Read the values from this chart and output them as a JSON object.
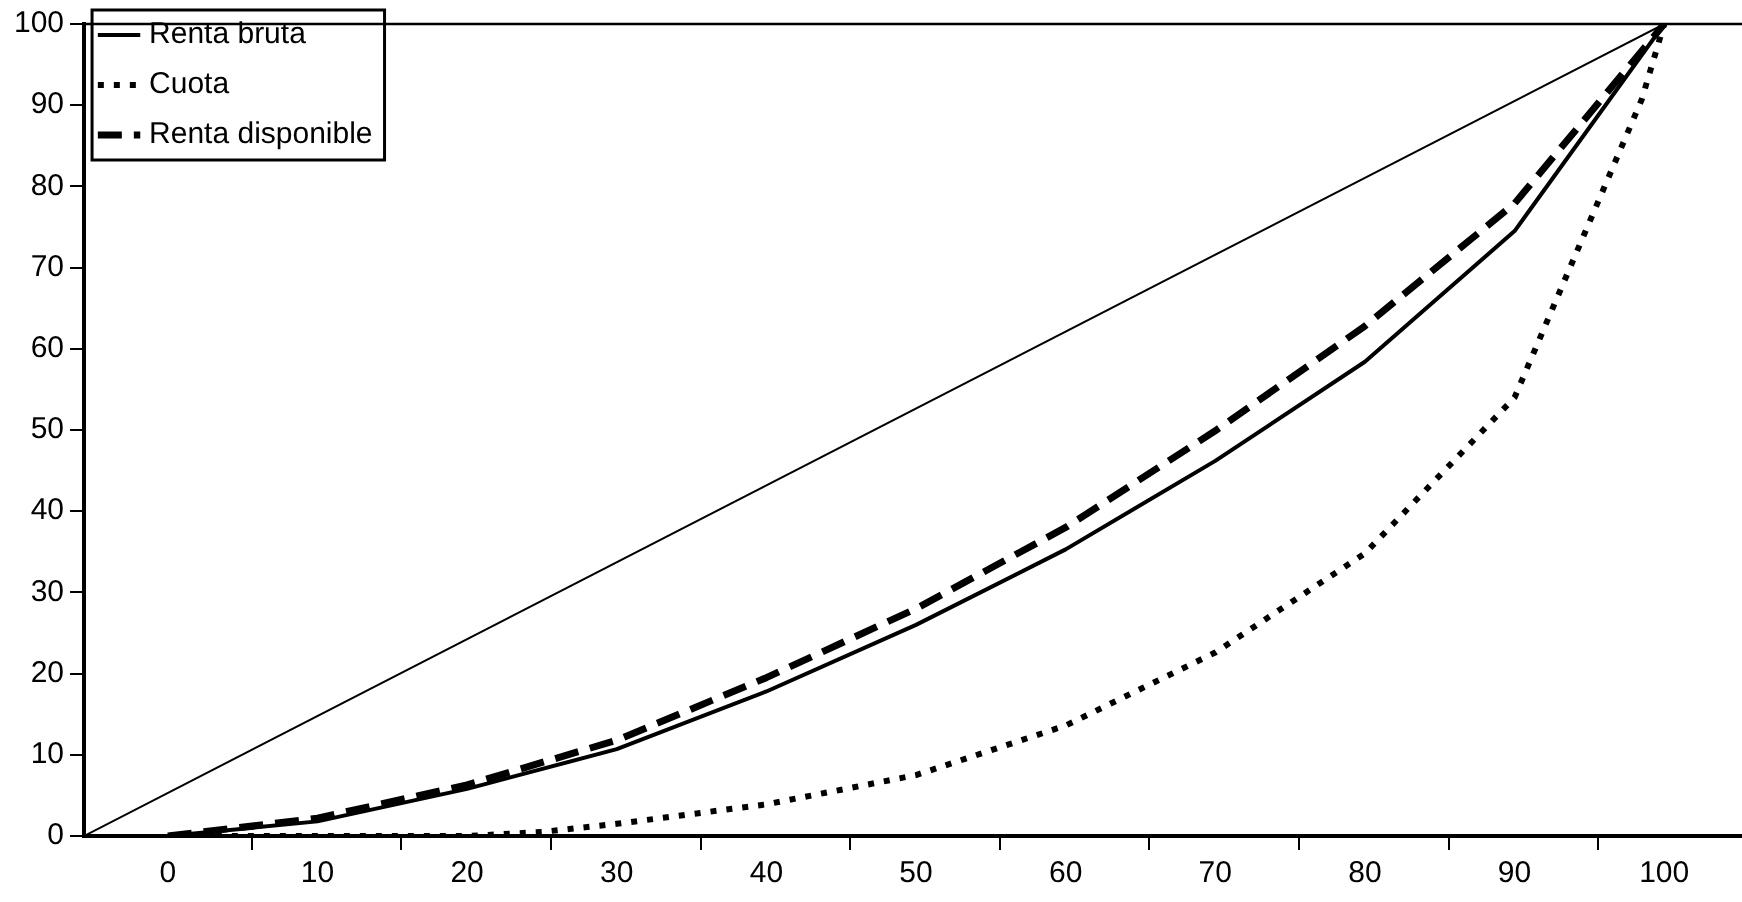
{
  "chart_data": {
    "type": "line",
    "x": [
      0,
      10,
      20,
      30,
      40,
      50,
      60,
      70,
      80,
      90,
      100
    ],
    "series": [
      {
        "name": "Renta bruta",
        "color": "#000000",
        "line_style": "solid",
        "values": [
          0,
          1.8,
          5.8,
          10.7,
          17.8,
          26,
          35.3,
          46.2,
          58.4,
          74.5,
          100
        ]
      },
      {
        "name": "Cuota",
        "color": "#000000",
        "line_style": "dotted",
        "x": [
          0,
          10,
          20,
          25,
          30,
          40,
          50,
          60,
          70,
          80,
          90,
          98.5,
          100
        ],
        "values": [
          0,
          0,
          0,
          0.5,
          1.5,
          3.9,
          7.5,
          13.6,
          22.6,
          34.8,
          54,
          90.7,
          100
        ]
      },
      {
        "name": "Renta disponible",
        "color": "#000000",
        "line_style": "dashed",
        "values": [
          0,
          2.2,
          6.3,
          11.8,
          19.5,
          28,
          38,
          49.9,
          62.8,
          77.9,
          100
        ]
      },
      {
        "color": "#000000",
        "line_style": "solid",
        "x": [
          -5.6,
          100
        ],
        "values": [
          0,
          100
        ]
      }
    ],
    "xlim": [
      -5.6,
      105.2
    ],
    "xticks": [
      0,
      {
        "value": 5.6,
        "label": null
      },
      10,
      {
        "value": 15.6,
        "label": null
      },
      20,
      {
        "value": 25.6,
        "label": null
      },
      30,
      {
        "value": 35.6,
        "label": null
      },
      40,
      {
        "value": 45.6,
        "label": null
      },
      50,
      {
        "value": 55.6,
        "label": null
      },
      60,
      {
        "value": 65.6,
        "label": null
      },
      70,
      {
        "value": 75.6,
        "label": null
      },
      80,
      {
        "value": 85.6,
        "label": null
      },
      90,
      {
        "value": 95.6,
        "label": null
      },
      100
    ],
    "ylim": [
      0,
      100
    ],
    "yticks": [
      0,
      10,
      20,
      30,
      40,
      50,
      60,
      70,
      80,
      90,
      100
    ],
    "grid": false,
    "legend": "top left",
    "marker": "none"
  }
}
